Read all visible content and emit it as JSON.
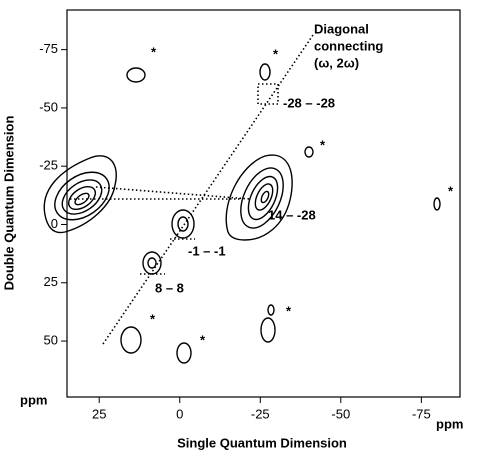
{
  "chart_data": {
    "type": "contour",
    "x_label": "Single Quantum Dimension",
    "y_label": "Double Quantum Dimension",
    "x_unit": "ppm",
    "y_unit": "ppm",
    "xlim": [
      35,
      -87
    ],
    "ylim": [
      -92,
      74
    ],
    "xticks": [
      25,
      0,
      -25,
      -50,
      -75
    ],
    "yticks": [
      -75,
      -50,
      -25,
      0,
      25,
      50
    ],
    "diagonal_label": [
      "Diagonal",
      "connecting",
      "(ω, 2ω)"
    ],
    "annotations": [
      "-28 – -28",
      "14 – -28",
      "-1 – -1",
      "8 – 8",
      "*",
      "*",
      "*",
      "*",
      "*",
      "*",
      "*"
    ]
  }
}
